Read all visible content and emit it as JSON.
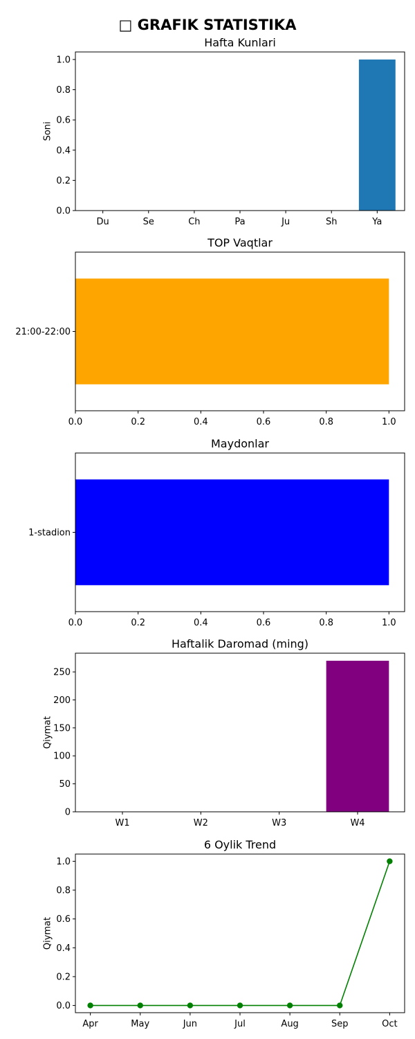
{
  "page": {
    "suptitle": "□ GRAFIK STATISTIKA"
  },
  "colors": {
    "bar1": "#1f77b4",
    "bar2": "#ffa500",
    "bar3": "#0000ff",
    "bar4": "#800080",
    "line5": "#008000"
  },
  "chart_data": [
    {
      "type": "bar",
      "title": "Hafta Kunlari",
      "xlabel": "",
      "ylabel": "Soni",
      "categories": [
        "Du",
        "Se",
        "Ch",
        "Pa",
        "Ju",
        "Sh",
        "Ya"
      ],
      "values": [
        0,
        0,
        0,
        0,
        0,
        0,
        1
      ],
      "ylim": [
        0,
        1.05
      ],
      "yticks": [
        "0.0",
        "0.2",
        "0.4",
        "0.6",
        "0.8",
        "1.0"
      ],
      "grid": false
    },
    {
      "type": "bar",
      "orientation": "horizontal",
      "title": "TOP Vaqtlar",
      "xlabel": "",
      "ylabel": "",
      "categories": [
        "21:00-22:00"
      ],
      "values": [
        1
      ],
      "xlim": [
        0,
        1.05
      ],
      "xticks": [
        "0.0",
        "0.2",
        "0.4",
        "0.6",
        "0.8",
        "1.0"
      ],
      "grid": false
    },
    {
      "type": "bar",
      "orientation": "horizontal",
      "title": "Maydonlar",
      "xlabel": "",
      "ylabel": "",
      "categories": [
        "1-stadion"
      ],
      "values": [
        1
      ],
      "xlim": [
        0,
        1.05
      ],
      "xticks": [
        "0.0",
        "0.2",
        "0.4",
        "0.6",
        "0.8",
        "1.0"
      ],
      "grid": false
    },
    {
      "type": "bar",
      "title": "Haftalik Daromad (ming)",
      "xlabel": "",
      "ylabel": "Qiymat",
      "categories": [
        "W1",
        "W2",
        "W3",
        "W4"
      ],
      "values": [
        0,
        0,
        0,
        270
      ],
      "ylim": [
        0,
        283.5
      ],
      "yticks": [
        "0",
        "50",
        "100",
        "150",
        "200",
        "250"
      ],
      "grid": false
    },
    {
      "type": "line",
      "title": "6 Oylik Trend",
      "xlabel": "",
      "ylabel": "Qiymat",
      "categories": [
        "Apr",
        "May",
        "Jun",
        "Jul",
        "Aug",
        "Sep",
        "Oct"
      ],
      "values": [
        0,
        0,
        0,
        0,
        0,
        0,
        1
      ],
      "ylim": [
        -0.05,
        1.05
      ],
      "yticks": [
        "0.0",
        "0.2",
        "0.4",
        "0.6",
        "0.8",
        "1.0"
      ],
      "markers": true,
      "grid": false
    }
  ]
}
